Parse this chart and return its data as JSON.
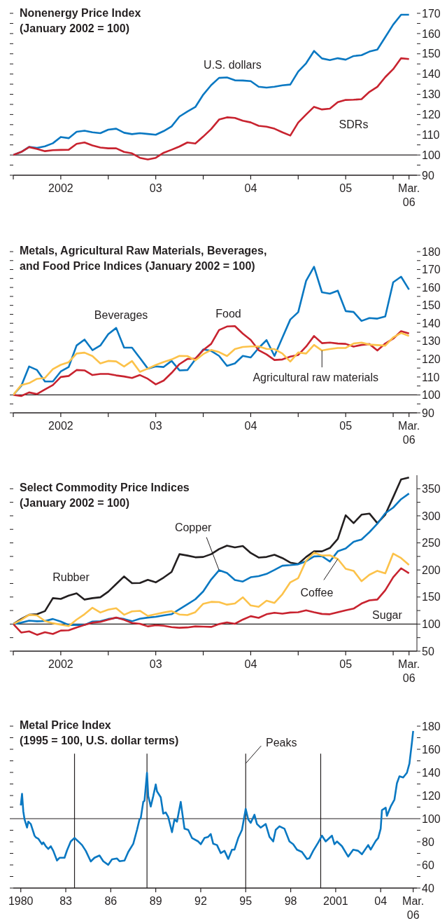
{
  "chart_data": [
    {
      "type": "line",
      "title": "Nonenergy Price Index",
      "subtitle": "(January 2002 = 100)",
      "marker": "none",
      "x": [
        "2002-01",
        "2002-02",
        "2002-03",
        "2002-04",
        "2002-05",
        "2002-06",
        "2002-07",
        "2002-08",
        "2002-09",
        "2002-10",
        "2002-11",
        "2002-12",
        "2003-01",
        "2003-02",
        "2003-03",
        "2003-04",
        "2003-05",
        "2003-06",
        "2003-07",
        "2003-08",
        "2003-09",
        "2003-10",
        "2003-11",
        "2003-12",
        "2004-01",
        "2004-02",
        "2004-03",
        "2004-04",
        "2004-05",
        "2004-06",
        "2004-07",
        "2004-08",
        "2004-09",
        "2004-10",
        "2004-11",
        "2004-12",
        "2005-01",
        "2005-02",
        "2005-03",
        "2005-04",
        "2005-05",
        "2005-06",
        "2005-07",
        "2005-08",
        "2005-09",
        "2005-10",
        "2005-11",
        "2005-12",
        "2006-01",
        "2006-02",
        "2006-03"
      ],
      "xlim": [
        "2002-01",
        "2006-04"
      ],
      "xticks": [
        {
          "value": "2002-01",
          "label": null
        },
        {
          "value": "2002-07",
          "label": "2002"
        },
        {
          "value": "2003-01",
          "label": null
        },
        {
          "value": "2003-07",
          "label": "03"
        },
        {
          "value": "2004-01",
          "label": null
        },
        {
          "value": "2004-07",
          "label": "04"
        },
        {
          "value": "2005-01",
          "label": null
        },
        {
          "value": "2005-07",
          "label": "05"
        },
        {
          "value": "2006-01",
          "label": null
        },
        {
          "value": "2006-03",
          "label": "Mar. 06"
        }
      ],
      "ylim": [
        90,
        170
      ],
      "yticks": [
        90,
        {
          "value": 95,
          "label": null
        },
        100,
        {
          "value": 105,
          "label": null
        },
        110,
        {
          "value": 115,
          "label": null
        },
        120,
        {
          "value": 125,
          "label": null
        },
        130,
        {
          "value": 135,
          "label": null
        },
        140,
        {
          "value": 145,
          "label": null
        },
        150,
        {
          "value": 155,
          "label": null
        },
        160,
        {
          "value": 165,
          "label": null
        },
        170
      ],
      "ref_lines": [
        {
          "axis": "y",
          "value": 100
        }
      ],
      "annotations": [
        {
          "text": "U.S. dollars",
          "x": "2004-04",
          "y": 138.3
        },
        {
          "text": "SDRs",
          "x": "2005-08",
          "y": 127.3
        }
      ],
      "series": [
        {
          "color": "#0a78c2",
          "values": [
            100,
            101.5,
            104,
            103.5,
            104.3,
            105.8,
            108.9,
            108.3,
            111.5,
            112,
            111.2,
            110.8,
            112.5,
            113,
            111,
            110.3,
            110.8,
            110.4,
            110,
            111.8,
            114.1,
            119,
            121.5,
            123.7,
            129.8,
            134.5,
            138.1,
            138.3,
            136.9,
            136.8,
            136.5,
            133.7,
            133.3,
            133.7,
            134.4,
            134.8,
            141.2,
            145.3,
            151.4,
            147.7,
            146.9,
            147.8,
            147.1,
            148.9,
            149.3,
            151.1,
            152.1,
            158.2,
            164.4,
            169.3,
            169.3
          ]
        },
        {
          "color": "#c8232f",
          "values": [
            100,
            101.5,
            103.9,
            103,
            101.9,
            102.4,
            102.5,
            102.6,
            105.5,
            106.2,
            104.7,
            103.7,
            103.3,
            103.3,
            101.5,
            100.8,
            98.6,
            97.8,
            98.6,
            101.1,
            102.6,
            104.2,
            106.2,
            105.7,
            109.1,
            112.8,
            117.5,
            118.6,
            118.3,
            116.9,
            116.1,
            114.4,
            114,
            113,
            111.2,
            109.6,
            116,
            120,
            123.8,
            122.5,
            122.9,
            126.1,
            127.2,
            127.3,
            127.6,
            131.2,
            133.7,
            138.5,
            142.4,
            147.8,
            147.4
          ]
        }
      ]
    },
    {
      "type": "line",
      "title": "Metals, Agricultural Raw Materials, Beverages, and Food Price Indices",
      "subtitle": "(January 2002 = 100)",
      "marker": "none",
      "x": [
        "2002-01",
        "2002-02",
        "2002-03",
        "2002-04",
        "2002-05",
        "2002-06",
        "2002-07",
        "2002-08",
        "2002-09",
        "2002-10",
        "2002-11",
        "2002-12",
        "2003-01",
        "2003-02",
        "2003-03",
        "2003-04",
        "2003-05",
        "2003-06",
        "2003-07",
        "2003-08",
        "2003-09",
        "2003-10",
        "2003-11",
        "2003-12",
        "2004-01",
        "2004-02",
        "2004-03",
        "2004-04",
        "2004-05",
        "2004-06",
        "2004-07",
        "2004-08",
        "2004-09",
        "2004-10",
        "2004-11",
        "2004-12",
        "2005-01",
        "2005-02",
        "2005-03",
        "2005-04",
        "2005-05",
        "2005-06",
        "2005-07",
        "2005-08",
        "2005-09",
        "2005-10",
        "2005-11",
        "2005-12",
        "2006-01",
        "2006-02",
        "2006-03"
      ],
      "xlim": [
        "2002-01",
        "2006-04"
      ],
      "xticks": [
        {
          "value": "2002-01",
          "label": null
        },
        {
          "value": "2002-07",
          "label": "2002"
        },
        {
          "value": "2003-01",
          "label": null
        },
        {
          "value": "2003-07",
          "label": "03"
        },
        {
          "value": "2004-01",
          "label": null
        },
        {
          "value": "2004-07",
          "label": "04"
        },
        {
          "value": "2005-01",
          "label": null
        },
        {
          "value": "2005-07",
          "label": "05"
        },
        {
          "value": "2006-01",
          "label": null
        },
        {
          "value": "2006-03",
          "label": "Mar. 06"
        }
      ],
      "ylim": [
        90,
        180
      ],
      "yticks": [
        90,
        {
          "value": 95,
          "label": null
        },
        100,
        {
          "value": 105,
          "label": null
        },
        110,
        {
          "value": 115,
          "label": null
        },
        120,
        {
          "value": 125,
          "label": null
        },
        130,
        {
          "value": 135,
          "label": null
        },
        140,
        {
          "value": 145,
          "label": null
        },
        150,
        {
          "value": 155,
          "label": null
        },
        160,
        {
          "value": 165,
          "label": null
        },
        170,
        {
          "value": 175,
          "label": null
        },
        180
      ],
      "ref_lines": [
        {
          "axis": "y",
          "value": 100
        }
      ],
      "annotations": [
        {
          "text": "Beverages",
          "x": "2003-02",
          "y": 137.4
        },
        {
          "text": "Food",
          "x": "2004-04",
          "y": 138.2
        },
        {
          "text": "Agricultural raw materials",
          "x": "2005-04",
          "y": 124.8
        }
      ],
      "series": [
        {
          "color": "#0a78c2",
          "values": [
            100,
            105,
            115.9,
            113.9,
            107.5,
            107.5,
            113.1,
            115.6,
            127.6,
            130.9,
            125,
            127.6,
            133.9,
            137.4,
            126.4,
            126.4,
            120.6,
            114.7,
            115.9,
            115.6,
            119,
            113.7,
            113.9,
            119.8,
            125.4,
            124.6,
            121.8,
            116.2,
            117.6,
            121.8,
            120.9,
            126.2,
            130.6,
            121.8,
            132,
            142.1,
            146.2,
            163.7,
            171.5,
            157.3,
            156.5,
            158.2,
            146.8,
            146.3,
            141.3,
            142.9,
            142.6,
            143.8,
            162.9,
            166,
            158.8
          ]
        },
        {
          "color": "#c8232f",
          "values": [
            100,
            99.4,
            101.4,
            100.5,
            103.1,
            105.5,
            110,
            110.6,
            113.9,
            113.7,
            111.1,
            111.7,
            111.7,
            110.9,
            110.3,
            109.5,
            111.1,
            109,
            105.9,
            108,
            112.3,
            117.2,
            120.1,
            120.3,
            125,
            128.5,
            136.2,
            138.2,
            138.4,
            134.2,
            130.7,
            125,
            122.6,
            119.5,
            119.8,
            121.4,
            122.3,
            127,
            132.9,
            128.9,
            129.2,
            128.7,
            128.5,
            127,
            127.9,
            128.4,
            124.8,
            128.7,
            131.4,
            135.6,
            134.3
          ]
        },
        {
          "color": "#fcc24a",
          "values": [
            100,
            105.5,
            106.6,
            109,
            109.5,
            114.4,
            116.8,
            118.3,
            123.1,
            123.6,
            121.7,
            117.6,
            119,
            118.7,
            115.9,
            118.9,
            112.9,
            114.7,
            116.7,
            118.4,
            119.8,
            121.8,
            121.7,
            119.3,
            122.8,
            125.1,
            123.9,
            121.7,
            125.6,
            126.8,
            127.1,
            127.1,
            125.7,
            125.6,
            123.1,
            118.6,
            123.7,
            123.1,
            127.9,
            124.8,
            125.6,
            126.2,
            126.2,
            128.7,
            129.2,
            128.1,
            127.8,
            127.5,
            132.1,
            134.6,
            132.9
          ]
        }
      ]
    },
    {
      "type": "line",
      "title": "Select Commodity Price Indices",
      "subtitle": "(January 2002 = 100)",
      "marker": "none",
      "x": [
        "2002-01",
        "2002-02",
        "2002-03",
        "2002-04",
        "2002-05",
        "2002-06",
        "2002-07",
        "2002-08",
        "2002-09",
        "2002-10",
        "2002-11",
        "2002-12",
        "2003-01",
        "2003-02",
        "2003-03",
        "2003-04",
        "2003-05",
        "2003-06",
        "2003-07",
        "2003-08",
        "2003-09",
        "2003-10",
        "2003-11",
        "2003-12",
        "2004-01",
        "2004-02",
        "2004-03",
        "2004-04",
        "2004-05",
        "2004-06",
        "2004-07",
        "2004-08",
        "2004-09",
        "2004-10",
        "2004-11",
        "2004-12",
        "2005-01",
        "2005-02",
        "2005-03",
        "2005-04",
        "2005-05",
        "2005-06",
        "2005-07",
        "2005-08",
        "2005-09",
        "2005-10",
        "2005-11",
        "2005-12",
        "2006-01",
        "2006-02",
        "2006-03"
      ],
      "xlim": [
        "2002-01",
        "2006-04"
      ],
      "xticks": [
        {
          "value": "2002-01",
          "label": null
        },
        {
          "value": "2002-07",
          "label": "2002"
        },
        {
          "value": "2003-01",
          "label": null
        },
        {
          "value": "2003-07",
          "label": "03"
        },
        {
          "value": "2004-01",
          "label": null
        },
        {
          "value": "2004-07",
          "label": "04"
        },
        {
          "value": "2005-01",
          "label": null
        },
        {
          "value": "2005-07",
          "label": "05"
        },
        {
          "value": "2006-01",
          "label": null
        },
        {
          "value": "2006-03",
          "label": "Mar. 06"
        }
      ],
      "ylim": [
        50,
        375
      ],
      "yticks": [
        50,
        {
          "value": 75,
          "label": null
        },
        100,
        {
          "value": 125,
          "label": null
        },
        150,
        {
          "value": 175,
          "label": null
        },
        200,
        {
          "value": 225,
          "label": null
        },
        250,
        {
          "value": 275,
          "label": null
        },
        300,
        {
          "value": 325,
          "label": null
        },
        350
      ],
      "ref_lines": [
        {
          "axis": "y",
          "value": 100
        }
      ],
      "annotations": [
        {
          "text": "Rubber",
          "x": "2002-09",
          "y": 156.8
        },
        {
          "text": "Copper",
          "x": "2004-03",
          "y": 199.5
        },
        {
          "text": "Coffee",
          "x": "2005-06",
          "y": 220.3
        },
        {
          "text": "Sugar",
          "x": "2005-11",
          "y": 145.3
        }
      ],
      "series": [
        {
          "color": "#231f20",
          "values": [
            100,
            109.4,
            117.2,
            118.2,
            124,
            147.9,
            146.4,
            152.6,
            156.8,
            145.3,
            147.9,
            149.5,
            159.9,
            174,
            188,
            175.5,
            176,
            181.8,
            177.1,
            185.9,
            196.4,
            229.2,
            226.6,
            223.4,
            224,
            229.2,
            238.5,
            244.8,
            241.7,
            244.3,
            231.3,
            222.9,
            224,
            228.1,
            221.9,
            213.5,
            210.9,
            224,
            234.4,
            234.4,
            240.6,
            257.3,
            301,
            286.5,
            302.1,
            304.2,
            286.5,
            302.1,
            334.4,
            367.2,
            370.8
          ]
        },
        {
          "color": "#0a78c2",
          "values": [
            100,
            102.6,
            106.3,
            105.2,
            105.7,
            109.4,
            104.7,
            98.4,
            98.4,
            98.4,
            104.7,
            105.2,
            109.4,
            111.5,
            109.4,
            105.2,
            109.9,
            112,
            113.5,
            116.1,
            118.2,
            127.6,
            136.5,
            145.8,
            160.4,
            182.3,
            199.5,
            194.3,
            181.3,
            178.6,
            186.5,
            188.5,
            192.7,
            200,
            207.8,
            208.9,
            210.4,
            216.1,
            225,
            225.5,
            215.6,
            234.4,
            239.6,
            252.1,
            256.3,
            269.8,
            285.4,
            304.7,
            315.1,
            330.7,
            341.1
          ]
        },
        {
          "color": "#fcc24a",
          "values": [
            100,
            107.8,
            117.2,
            116.1,
            105.7,
            101.6,
            99,
            96.4,
            108.3,
            118.2,
            130.2,
            121.4,
            126.6,
            129.2,
            117.2,
            123.4,
            124.5,
            115.1,
            118.2,
            121.4,
            124,
            117.7,
            116.7,
            121.9,
            137.5,
            141.1,
            140.6,
            135.9,
            138,
            149.5,
            134.4,
            131.8,
            143.2,
            139.1,
            155.2,
            177.1,
            184.9,
            217.2,
            231.8,
            226.6,
            227.1,
            220.3,
            202.1,
            198.4,
            179.2,
            191.1,
            198.4,
            193.8,
            230.2,
            221.9,
            209.4
          ]
        },
        {
          "color": "#c8232f",
          "values": [
            100,
            84.4,
            86.5,
            80.2,
            84.9,
            81.8,
            88,
            88.5,
            93.8,
            98.4,
            102.6,
            104.2,
            108.3,
            112,
            107.8,
            102.1,
            100.5,
            95.8,
            97.9,
            96.9,
            94.3,
            93.2,
            93.8,
            95.8,
            95.3,
            94.8,
            100,
            103.1,
            100.5,
            108.3,
            114.6,
            111.5,
            118.2,
            120.8,
            119.3,
            121.4,
            121.9,
            125.5,
            121.9,
            118.8,
            118.2,
            121.9,
            125.5,
            128.6,
            138,
            143.8,
            145.3,
            162.5,
            186.5,
            203.1,
            193.8
          ]
        }
      ]
    },
    {
      "type": "line",
      "title": "Metal Price Index",
      "subtitle": "(1995 = 100, U.S. dollar terms)",
      "marker": "none",
      "x": [
        "1980-01",
        "1980-02",
        "1980-03",
        "1980-04",
        "1980-06",
        "1980-07",
        "1980-09",
        "1980-12",
        "1981-01",
        "1981-03",
        "1981-06",
        "1981-07",
        "1981-09",
        "1981-11",
        "1982-01",
        "1982-03",
        "1982-06",
        "1982-08",
        "1982-12",
        "1983-02",
        "1983-05",
        "1983-08",
        "1983-12",
        "1984-02",
        "1984-05",
        "1984-09",
        "1984-12",
        "1985-04",
        "1985-07",
        "1985-11",
        "1986-02",
        "1986-06",
        "1986-08",
        "1986-12",
        "1987-03",
        "1987-07",
        "1987-10",
        "1987-12",
        "1988-01",
        "1988-03",
        "1988-04",
        "1988-06",
        "1988-07",
        "1988-09",
        "1988-11",
        "1989-01",
        "1989-02",
        "1989-05",
        "1989-07",
        "1989-09",
        "1989-11",
        "1990-02",
        "1990-04",
        "1990-06",
        "1990-09",
        "1990-12",
        "1991-03",
        "1991-06",
        "1991-11",
        "1992-01",
        "1992-04",
        "1992-07",
        "1992-09",
        "1992-11",
        "1993-02",
        "1993-05",
        "1993-08",
        "1993-11",
        "1994-02",
        "1994-04",
        "1994-07",
        "1994-10",
        "1995-01",
        "1995-03",
        "1995-05",
        "1995-08",
        "1995-10",
        "1996-01",
        "1996-05",
        "1996-08",
        "1996-11",
        "1997-01",
        "1997-04",
        "1997-08",
        "1997-12",
        "1998-03",
        "1998-06",
        "1998-10",
        "1999-02",
        "1999-04",
        "1999-07",
        "1999-11",
        "2000-02",
        "2000-05",
        "2000-10",
        "2000-12",
        "2001-02",
        "2001-06",
        "2001-11",
        "2002-03",
        "2002-07",
        "2002-10",
        "2003-03",
        "2003-05",
        "2003-09",
        "2003-11",
        "2004-01",
        "2004-02",
        "2004-05",
        "2004-06",
        "2004-09",
        "2004-12",
        "2005-02",
        "2005-04",
        "2005-07",
        "2005-10",
        "2005-12",
        "2006-02",
        "2006-03"
      ],
      "xlim": [
        "1979-07",
        "2006-06"
      ],
      "xticks": [
        {
          "value": "1980",
          "label": "1980"
        },
        {
          "value": "1983",
          "label": "83"
        },
        {
          "value": "1986",
          "label": "86"
        },
        {
          "value": "1989",
          "label": "89"
        },
        {
          "value": "1992",
          "label": "92"
        },
        {
          "value": "1995",
          "label": "95"
        },
        {
          "value": "1998",
          "label": "98"
        },
        {
          "value": "2001",
          "label": "2001"
        },
        {
          "value": "2004",
          "label": "04"
        },
        {
          "value": "2006-03",
          "label": "Mar. 06"
        }
      ],
      "ylim": [
        40,
        180
      ],
      "yticks": [
        40,
        {
          "value": 50,
          "label": null
        },
        60,
        {
          "value": 70,
          "label": null
        },
        80,
        {
          "value": 90,
          "label": null
        },
        100,
        {
          "value": 110,
          "label": null
        },
        120,
        {
          "value": 130,
          "label": null
        },
        140,
        {
          "value": 150,
          "label": null
        },
        160,
        {
          "value": 170,
          "label": null
        },
        180
      ],
      "ref_lines": [
        {
          "axis": "y",
          "value": 100
        },
        {
          "axis": "x",
          "value": "1983-08"
        },
        {
          "axis": "x",
          "value": "1988-06"
        },
        {
          "axis": "x",
          "value": "1995-01"
        },
        {
          "axis": "x",
          "value": "2000-01"
        }
      ],
      "annotations": [
        {
          "text": "Peaks",
          "x": "1995-01",
          "y": 147.8
        }
      ],
      "series": [
        {
          "color": "#0a78c2",
          "values": [
            111.5,
            121.5,
            106.4,
            99.4,
            92.3,
            97.4,
            95.4,
            85.3,
            83.9,
            82.7,
            77.9,
            79.5,
            76.2,
            73.8,
            76.2,
            72.2,
            63.8,
            66.2,
            66.2,
            72.6,
            80.3,
            83.3,
            79.3,
            77.2,
            72.2,
            63,
            66.2,
            68.2,
            63.2,
            60.1,
            64.8,
            65.6,
            63.2,
            63.8,
            71.2,
            78.3,
            90.3,
            99.4,
            100.4,
            114.5,
            115.5,
            139.7,
            119.5,
            110.5,
            119.5,
            129.6,
            123.6,
            118.5,
            104.4,
            105.4,
            101.4,
            88.3,
            99.4,
            97.4,
            114.5,
            91.3,
            90.3,
            83.3,
            80.3,
            77.9,
            83.3,
            84.3,
            86.7,
            78.3,
            77.2,
            70.2,
            72.2,
            65.2,
            73.2,
            73.2,
            83.3,
            90.3,
            108.5,
            99.4,
            96.4,
            103.4,
            95.4,
            92.3,
            95.4,
            84.3,
            80.3,
            90.3,
            93.4,
            91.3,
            80.3,
            77.9,
            73.2,
            71.2,
            65.2,
            65.8,
            72.2,
            79.3,
            85.3,
            80.3,
            85.3,
            77.9,
            80.3,
            76.2,
            67.2,
            73.2,
            72.2,
            69.2,
            77.2,
            73.2,
            80.7,
            83.3,
            91.3,
            107.4,
            109.5,
            102.4,
            110.5,
            116.5,
            130.6,
            136.6,
            135.6,
            139.7,
            147.7,
            165.8,
            175.9
          ]
        }
      ]
    }
  ]
}
